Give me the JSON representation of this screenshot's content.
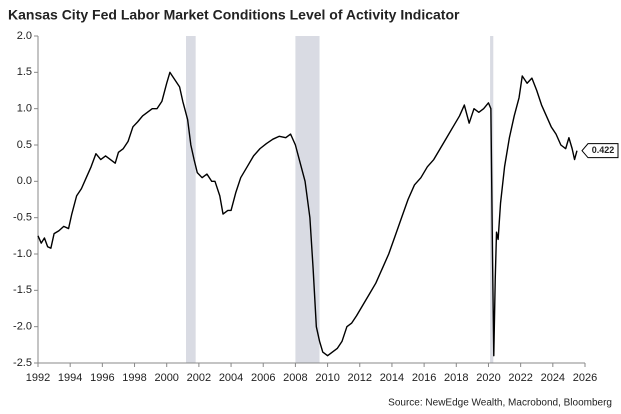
{
  "chart_data": {
    "type": "line",
    "title": "Kansas City Fed Labor Market Conditions Level of Activity Indicator",
    "source": "Source: NewEdge Wealth, Macrobond, Bloomberg",
    "x": [
      1992.0,
      1992.2,
      1992.4,
      1992.6,
      1992.8,
      1993.0,
      1993.3,
      1993.6,
      1993.9,
      1994.1,
      1994.4,
      1994.7,
      1995.0,
      1995.3,
      1995.6,
      1995.9,
      1996.2,
      1996.5,
      1996.8,
      1997.0,
      1997.3,
      1997.6,
      1997.9,
      1998.2,
      1998.5,
      1998.8,
      1999.1,
      1999.4,
      1999.7,
      2000.0,
      2000.2,
      2000.5,
      2000.8,
      2001.0,
      2001.3,
      2001.5,
      2001.7,
      2001.9,
      2002.2,
      2002.5,
      2002.8,
      2003.0,
      2003.3,
      2003.5,
      2003.8,
      2004.0,
      2004.3,
      2004.6,
      2005.0,
      2005.4,
      2005.8,
      2006.2,
      2006.6,
      2007.0,
      2007.4,
      2007.7,
      2008.0,
      2008.3,
      2008.6,
      2008.9,
      2009.1,
      2009.3,
      2009.5,
      2009.7,
      2010.0,
      2010.3,
      2010.6,
      2010.9,
      2011.2,
      2011.5,
      2011.8,
      2012.2,
      2012.6,
      2013.0,
      2013.4,
      2013.8,
      2014.2,
      2014.6,
      2015.0,
      2015.4,
      2015.8,
      2016.2,
      2016.6,
      2017.0,
      2017.4,
      2017.8,
      2018.2,
      2018.5,
      2018.8,
      2019.1,
      2019.4,
      2019.7,
      2020.0,
      2020.15,
      2020.25,
      2020.33,
      2020.42,
      2020.5,
      2020.6,
      2020.75,
      2021.0,
      2021.3,
      2021.6,
      2021.9,
      2022.1,
      2022.4,
      2022.7,
      2023.0,
      2023.3,
      2023.6,
      2023.9,
      2024.2,
      2024.5,
      2024.8,
      2025.0,
      2025.2,
      2025.35,
      2025.5
    ],
    "series": [
      {
        "name": "Level of Activity Indicator",
        "color": "#000000",
        "values": [
          -0.75,
          -0.85,
          -0.78,
          -0.9,
          -0.92,
          -0.72,
          -0.68,
          -0.62,
          -0.65,
          -0.45,
          -0.2,
          -0.1,
          0.05,
          0.2,
          0.38,
          0.3,
          0.35,
          0.3,
          0.25,
          0.4,
          0.45,
          0.55,
          0.75,
          0.82,
          0.9,
          0.95,
          1.0,
          1.0,
          1.1,
          1.35,
          1.5,
          1.4,
          1.3,
          1.1,
          0.85,
          0.5,
          0.3,
          0.12,
          0.05,
          0.1,
          0.0,
          0.0,
          -0.2,
          -0.45,
          -0.4,
          -0.4,
          -0.15,
          0.05,
          0.2,
          0.35,
          0.45,
          0.52,
          0.58,
          0.62,
          0.6,
          0.65,
          0.5,
          0.25,
          0.0,
          -0.5,
          -1.2,
          -2.0,
          -2.2,
          -2.35,
          -2.4,
          -2.35,
          -2.3,
          -2.2,
          -2.0,
          -1.95,
          -1.85,
          -1.7,
          -1.55,
          -1.4,
          -1.2,
          -1.0,
          -0.75,
          -0.5,
          -0.25,
          -0.05,
          0.05,
          0.2,
          0.3,
          0.45,
          0.6,
          0.75,
          0.9,
          1.05,
          0.8,
          1.0,
          0.95,
          1.0,
          1.08,
          1.0,
          -1.0,
          -2.4,
          -1.35,
          -0.7,
          -0.8,
          -0.3,
          0.2,
          0.6,
          0.9,
          1.15,
          1.45,
          1.35,
          1.42,
          1.25,
          1.05,
          0.9,
          0.75,
          0.65,
          0.5,
          0.45,
          0.6,
          0.45,
          0.3,
          0.422
        ]
      }
    ],
    "end_label": 0.422,
    "shaded_periods": [
      [
        2001.2,
        2001.8
      ],
      [
        2008.0,
        2009.5
      ],
      [
        2020.1,
        2020.3
      ]
    ],
    "shade_color": "#d9dbe3",
    "xlim": [
      1992,
      2026
    ],
    "xticks": [
      1992,
      1994,
      1996,
      1998,
      2000,
      2002,
      2004,
      2006,
      2008,
      2010,
      2012,
      2014,
      2016,
      2018,
      2020,
      2022,
      2024,
      2026
    ],
    "ylim": [
      -2.5,
      2.0
    ],
    "yticks": [
      {
        "value": -2.5,
        "label": "-2.5"
      },
      {
        "value": -2,
        "label": "-2.0"
      },
      {
        "value": -1.5,
        "label": "-1.5"
      },
      {
        "value": -1,
        "label": "-1.0"
      },
      {
        "value": -0.5,
        "label": "-0.5"
      },
      {
        "value": 0,
        "label": "0.0"
      },
      {
        "value": 0.5,
        "label": "0.5"
      },
      {
        "value": 1,
        "label": "1.0"
      },
      {
        "value": 1.5,
        "label": "1.5"
      },
      {
        "value": 2,
        "label": "2.0"
      }
    ],
    "grid": false
  }
}
